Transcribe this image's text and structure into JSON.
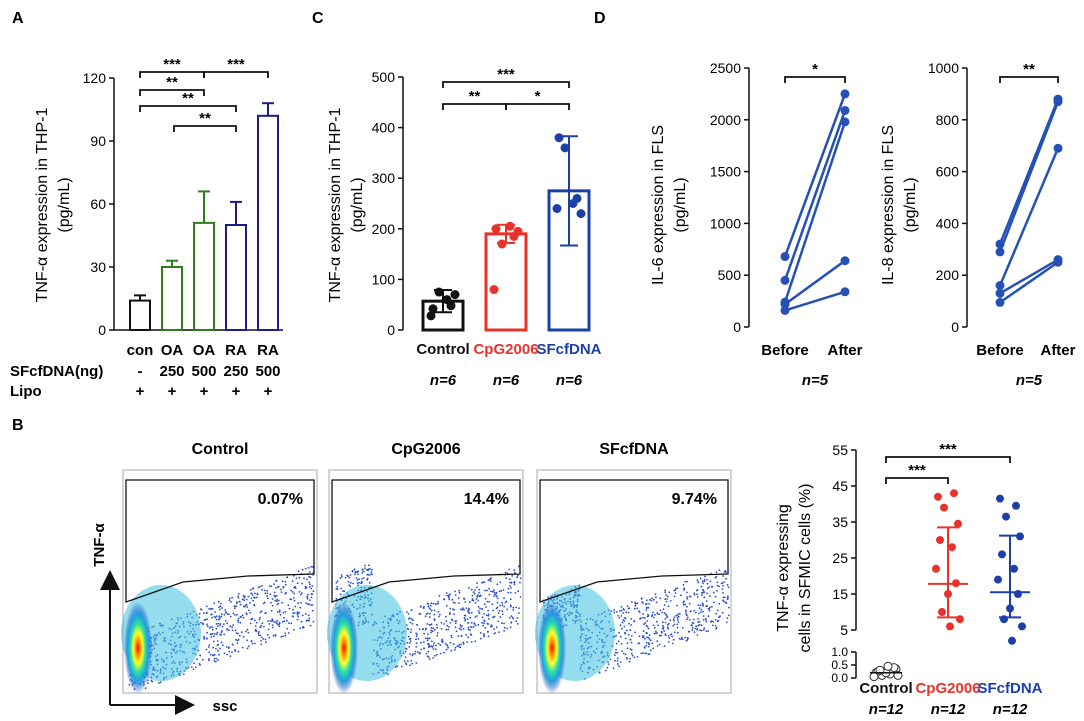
{
  "colors": {
    "black": "#111111",
    "green": "#2e7d1e",
    "navy": "#1a1a8c",
    "red": "#e8322a",
    "blue": "#1d3fa8",
    "line_blue": "#2550b5"
  },
  "panel_labels": [
    "A",
    "B",
    "C",
    "D"
  ],
  "chart_data": [
    {
      "id": "A",
      "type": "bar",
      "ylabel_lines": [
        "TNF-α expression in THP-1",
        "(pg/mL)"
      ],
      "ylim": [
        0,
        120
      ],
      "ticks": [
        0,
        30,
        60,
        90,
        120
      ],
      "categories": [
        "con",
        "OA",
        "OA",
        "RA",
        "RA"
      ],
      "values": [
        14,
        30,
        51,
        50,
        102
      ],
      "errors": [
        2.5,
        3,
        15,
        11,
        6
      ],
      "bar_colors": [
        "#111111",
        "#2e7d1e",
        "#2e7d1e",
        "#1a1a8c",
        "#1a1a8c"
      ],
      "rows": [
        {
          "label": "SFcfDNA(ng)",
          "values": [
            "-",
            "250",
            "500",
            "250",
            "500"
          ]
        },
        {
          "label": "Lipo",
          "values": [
            "+",
            "+",
            "+",
            "+",
            "+"
          ]
        }
      ],
      "significance": [
        {
          "from": 0,
          "to": 2,
          "label": "***"
        },
        {
          "from": 2,
          "to": 4,
          "label": "***"
        },
        {
          "from": 0,
          "to": 2,
          "label": "**"
        },
        {
          "from": 0,
          "to": 3,
          "label": "**"
        },
        {
          "from": 1,
          "to": 3,
          "label": "**"
        }
      ]
    },
    {
      "id": "C",
      "type": "bar",
      "ylabel_lines": [
        "TNF-α expression in THP-1",
        "(pg/mL)"
      ],
      "ylim": [
        0,
        500
      ],
      "ticks": [
        0,
        100,
        200,
        300,
        400,
        500
      ],
      "categories": [
        "Control",
        "CpG2006",
        "SFcfDNA"
      ],
      "category_colors": [
        "#111111",
        "#e8322a",
        "#1d3fa8"
      ],
      "values": [
        57,
        190,
        275
      ],
      "errors": [
        22,
        18,
        108
      ],
      "points": [
        [
          42,
          75,
          48,
          70,
          28,
          60
        ],
        [
          200,
          170,
          185,
          195,
          80,
          205
        ],
        [
          380,
          360,
          260,
          230,
          240,
          250
        ]
      ],
      "n_labels": [
        "n=6",
        "n=6",
        "n=6"
      ],
      "significance": [
        {
          "from": 0,
          "to": 2,
          "label": "***"
        },
        {
          "from": 0,
          "to": 1,
          "label": "**"
        },
        {
          "from": 1,
          "to": 2,
          "label": "*"
        }
      ]
    },
    {
      "id": "D1",
      "type": "line",
      "ylabel_lines": [
        "IL-6 expression in FLS",
        "(pg/mL)"
      ],
      "ylim": [
        0,
        2500
      ],
      "ticks": [
        0,
        500,
        1000,
        1500,
        2000,
        2500
      ],
      "categories": [
        "Before",
        "After"
      ],
      "series": [
        [
          680,
          2250
        ],
        [
          450,
          2090
        ],
        [
          240,
          1980
        ],
        [
          220,
          640
        ],
        [
          160,
          340
        ]
      ],
      "n_label": "n=5",
      "significance": {
        "label": "*"
      }
    },
    {
      "id": "D2",
      "type": "line",
      "ylabel_lines": [
        "IL-8 expression in FLS",
        "(pg/mL)"
      ],
      "ylim": [
        0,
        1000
      ],
      "ticks": [
        0,
        200,
        400,
        600,
        800,
        1000
      ],
      "categories": [
        "Before",
        "After"
      ],
      "series": [
        [
          320,
          880
        ],
        [
          290,
          870
        ],
        [
          160,
          690
        ],
        [
          130,
          260
        ],
        [
          95,
          250
        ]
      ],
      "n_label": "n=5",
      "significance": {
        "label": "**"
      }
    },
    {
      "id": "B-scatter",
      "type": "scatter",
      "ylabel_lines": [
        "TNF-α expressing",
        "cells in SFMIC cells (%)"
      ],
      "ticks_upper": [
        "55",
        "45",
        "35",
        "25",
        "15",
        "5"
      ],
      "ticks_lower": [
        "1.0",
        "0.5",
        "0.0"
      ],
      "categories": [
        "Control",
        "CpG2006",
        "SFcfDNA"
      ],
      "category_colors": [
        "#111111",
        "#e8322a",
        "#1d3fa8"
      ],
      "medians": [
        0.2,
        17.8,
        15.5
      ],
      "q": [
        [
          0.05,
          0.35
        ],
        [
          8.5,
          33.5
        ],
        [
          8.5,
          31.2
        ]
      ],
      "points": [
        [
          0.2,
          0.3,
          0.1,
          0.35,
          0.25,
          0.15,
          0.05,
          0.4,
          0.2,
          0.3,
          0.1,
          0.45
        ],
        [
          42,
          43,
          39,
          34.5,
          30,
          28,
          22,
          18,
          15,
          10,
          8,
          6
        ],
        [
          41.5,
          39.5,
          36.5,
          31,
          26,
          22,
          19,
          15,
          11,
          8,
          6,
          2
        ]
      ],
      "n_labels": [
        "n=12",
        "n=12",
        "n=12"
      ],
      "significance": [
        {
          "from": 0,
          "to": 1,
          "label": "***"
        },
        {
          "from": 0,
          "to": 2,
          "label": "***"
        }
      ]
    }
  ],
  "flow": {
    "panels": [
      {
        "title": "Control",
        "percent": "0.07%"
      },
      {
        "title": "CpG2006",
        "percent": "14.4%"
      },
      {
        "title": "SFcfDNA",
        "percent": "9.74%"
      }
    ],
    "y_axis_label": "TNF-α",
    "x_axis_label": "ssc"
  }
}
